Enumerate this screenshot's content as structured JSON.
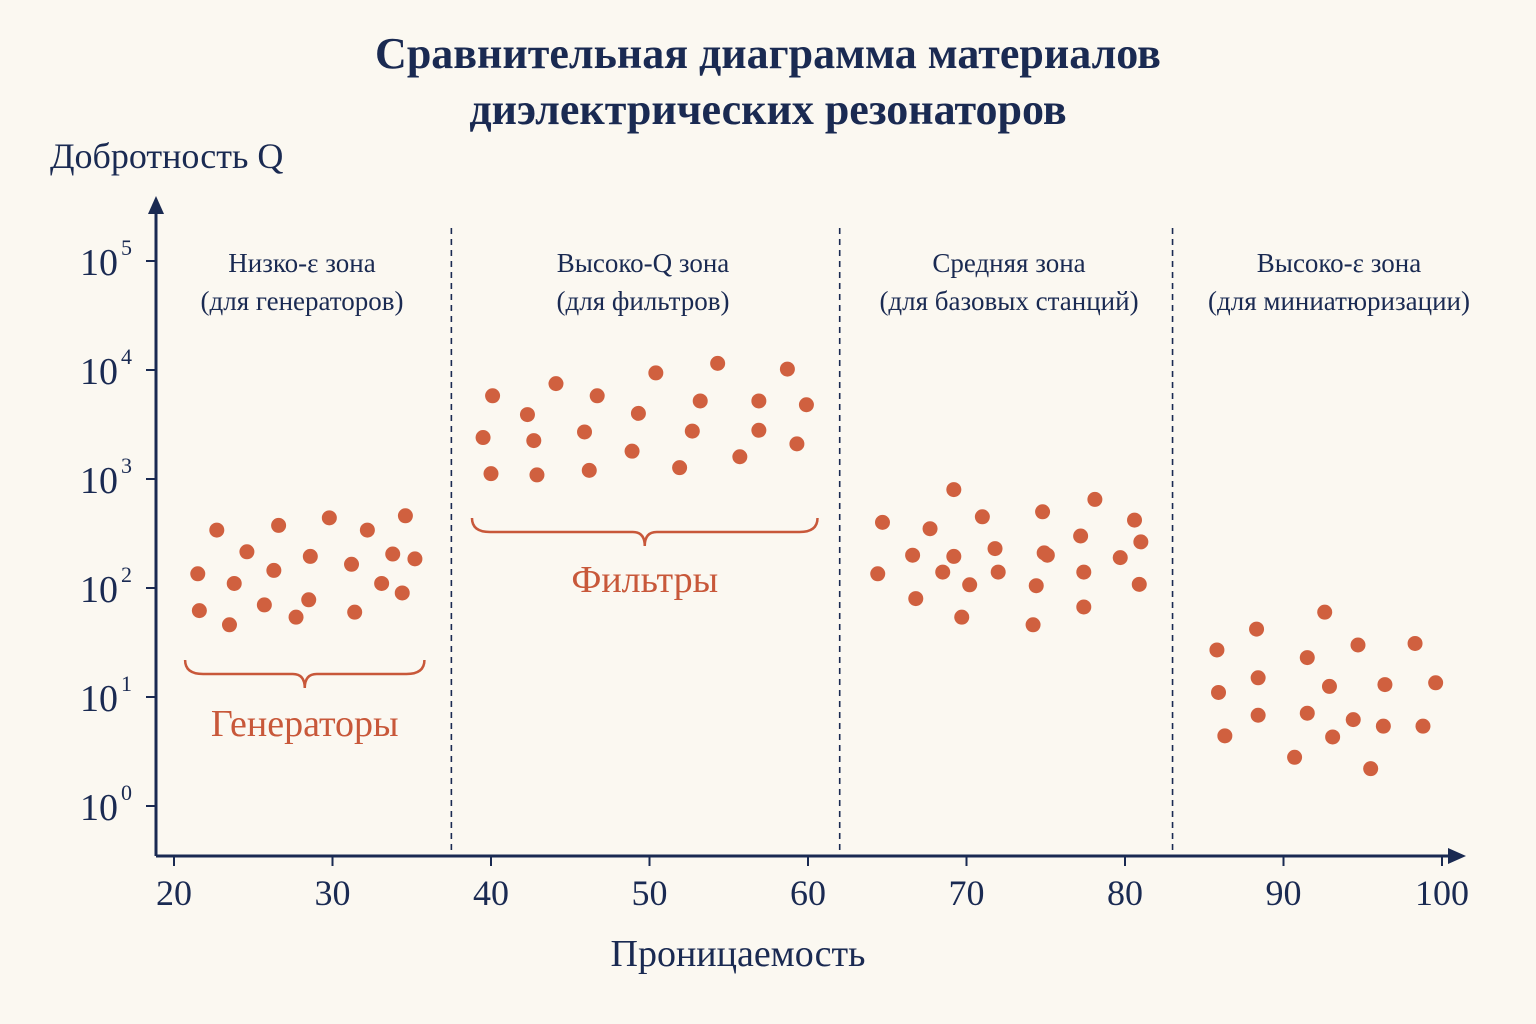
{
  "chart_data": {
    "type": "scatter",
    "title": [
      "Сравнительная диаграмма материалов",
      "диэлектрических резонаторов"
    ],
    "xlabel": "Проницаемость",
    "ylabel": "Добротность Q",
    "xlim": [
      19,
      102
    ],
    "ylim": [
      0.55,
      160000
    ],
    "yscale": "log",
    "xticks": [
      "20",
      "30",
      "40",
      "50",
      "60",
      "70",
      "80",
      "90",
      "100"
    ],
    "yticks": [
      {
        "base": "10",
        "exp": "0"
      },
      {
        "base": "10",
        "exp": "1"
      },
      {
        "base": "10",
        "exp": "2"
      },
      {
        "base": "10",
        "exp": "3"
      },
      {
        "base": "10",
        "exp": "4"
      },
      {
        "base": "10",
        "exp": "5"
      }
    ],
    "zone_boundaries": [
      37.5,
      62,
      83
    ],
    "zones": [
      {
        "line1": "Низко-ε зона",
        "line2": "(для генераторов)"
      },
      {
        "line1": "Высоко-Q зона",
        "line2": "(для фильтров)"
      },
      {
        "line1": "Средняя зона",
        "line2": "(для базовых станций)"
      },
      {
        "line1": "Высоко-ε зона",
        "line2": "(для миниатюризации)"
      }
    ],
    "annotations": [
      {
        "text": "Генераторы",
        "x_from": 20.7,
        "x_to": 35.8
      },
      {
        "text": "Фильтры",
        "x_from": 38.8,
        "x_to": 60.6
      }
    ],
    "colors": {
      "points": "#d0603f",
      "axis": "#1a2a52",
      "annotation": "#c8583a"
    },
    "points": [
      {
        "x": 21.5,
        "y": 135
      },
      {
        "x": 21.6,
        "y": 62
      },
      {
        "x": 22.7,
        "y": 340
      },
      {
        "x": 23.5,
        "y": 46
      },
      {
        "x": 23.8,
        "y": 110
      },
      {
        "x": 24.6,
        "y": 215
      },
      {
        "x": 25.7,
        "y": 70
      },
      {
        "x": 26.3,
        "y": 145
      },
      {
        "x": 26.6,
        "y": 375
      },
      {
        "x": 27.7,
        "y": 54
      },
      {
        "x": 28.5,
        "y": 78
      },
      {
        "x": 28.6,
        "y": 195
      },
      {
        "x": 29.8,
        "y": 440
      },
      {
        "x": 31.2,
        "y": 165
      },
      {
        "x": 31.4,
        "y": 60
      },
      {
        "x": 32.2,
        "y": 340
      },
      {
        "x": 33.1,
        "y": 110
      },
      {
        "x": 33.8,
        "y": 205
      },
      {
        "x": 34.4,
        "y": 90
      },
      {
        "x": 34.6,
        "y": 460
      },
      {
        "x": 35.2,
        "y": 185
      },
      {
        "x": 39.5,
        "y": 2400
      },
      {
        "x": 40.0,
        "y": 1120
      },
      {
        "x": 40.1,
        "y": 5800
      },
      {
        "x": 42.3,
        "y": 3900
      },
      {
        "x": 42.7,
        "y": 2250
      },
      {
        "x": 42.9,
        "y": 1090
      },
      {
        "x": 44.1,
        "y": 7500
      },
      {
        "x": 45.9,
        "y": 2700
      },
      {
        "x": 46.2,
        "y": 1200
      },
      {
        "x": 46.7,
        "y": 5800
      },
      {
        "x": 48.9,
        "y": 1800
      },
      {
        "x": 49.3,
        "y": 4000
      },
      {
        "x": 50.4,
        "y": 9400
      },
      {
        "x": 51.9,
        "y": 1270
      },
      {
        "x": 52.7,
        "y": 2750
      },
      {
        "x": 53.2,
        "y": 5200
      },
      {
        "x": 54.3,
        "y": 11500
      },
      {
        "x": 55.7,
        "y": 1600
      },
      {
        "x": 56.9,
        "y": 5200
      },
      {
        "x": 56.9,
        "y": 2800
      },
      {
        "x": 58.7,
        "y": 10200
      },
      {
        "x": 59.3,
        "y": 2100
      },
      {
        "x": 59.9,
        "y": 4800
      },
      {
        "x": 64.4,
        "y": 135
      },
      {
        "x": 64.7,
        "y": 400
      },
      {
        "x": 66.6,
        "y": 200
      },
      {
        "x": 66.8,
        "y": 80
      },
      {
        "x": 67.7,
        "y": 350
      },
      {
        "x": 68.5,
        "y": 140
      },
      {
        "x": 69.2,
        "y": 800
      },
      {
        "x": 69.2,
        "y": 195
      },
      {
        "x": 69.7,
        "y": 54
      },
      {
        "x": 70.2,
        "y": 107
      },
      {
        "x": 71.0,
        "y": 450
      },
      {
        "x": 71.8,
        "y": 230
      },
      {
        "x": 72.0,
        "y": 140
      },
      {
        "x": 74.2,
        "y": 46
      },
      {
        "x": 74.4,
        "y": 105
      },
      {
        "x": 74.8,
        "y": 500
      },
      {
        "x": 74.9,
        "y": 210
      },
      {
        "x": 75.1,
        "y": 200
      },
      {
        "x": 77.2,
        "y": 300
      },
      {
        "x": 77.4,
        "y": 140
      },
      {
        "x": 77.4,
        "y": 67
      },
      {
        "x": 78.1,
        "y": 650
      },
      {
        "x": 79.7,
        "y": 190
      },
      {
        "x": 80.6,
        "y": 420
      },
      {
        "x": 80.9,
        "y": 108
      },
      {
        "x": 81.0,
        "y": 265
      },
      {
        "x": 85.8,
        "y": 27
      },
      {
        "x": 85.9,
        "y": 11
      },
      {
        "x": 86.3,
        "y": 4.4
      },
      {
        "x": 88.3,
        "y": 42
      },
      {
        "x": 88.4,
        "y": 15
      },
      {
        "x": 88.4,
        "y": 6.8
      },
      {
        "x": 90.7,
        "y": 2.8
      },
      {
        "x": 91.5,
        "y": 23
      },
      {
        "x": 91.5,
        "y": 7.1
      },
      {
        "x": 92.6,
        "y": 60
      },
      {
        "x": 92.9,
        "y": 12.5
      },
      {
        "x": 93.1,
        "y": 4.3
      },
      {
        "x": 94.4,
        "y": 6.2
      },
      {
        "x": 94.7,
        "y": 30
      },
      {
        "x": 95.5,
        "y": 2.2
      },
      {
        "x": 96.3,
        "y": 5.4
      },
      {
        "x": 96.4,
        "y": 13
      },
      {
        "x": 98.3,
        "y": 31
      },
      {
        "x": 98.8,
        "y": 5.4
      },
      {
        "x": 99.6,
        "y": 13.5
      }
    ]
  }
}
